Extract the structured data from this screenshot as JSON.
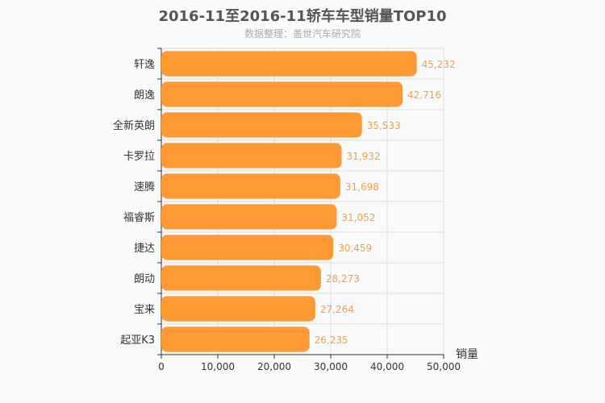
{
  "title": "2016-11至2016-11轿车车型销量TOP10",
  "subtitle": "数据整理：盖世汽车研究院",
  "chart_data": {
    "type": "bar",
    "orientation": "horizontal",
    "title": "2016-11至2016-11轿车车型销量TOP10",
    "subtitle": "数据整理：盖世汽车研究院",
    "categories": [
      "轩逸",
      "朗逸",
      "全新英朗",
      "卡罗拉",
      "速腾",
      "福睿斯",
      "捷达",
      "朗动",
      "宝来",
      "起亚K3"
    ],
    "values": [
      45232,
      42716,
      35533,
      31932,
      31698,
      31052,
      30459,
      28273,
      27264,
      26235
    ],
    "value_labels": [
      "45,232",
      "42,716",
      "35,533",
      "31,932",
      "31,698",
      "31,052",
      "30,459",
      "28,273",
      "27,264",
      "26,235"
    ],
    "xlabel": "销量",
    "ylabel": "",
    "xlim": [
      0,
      50000
    ],
    "x_ticks": [
      0,
      10000,
      20000,
      30000,
      40000,
      50000
    ],
    "x_tick_labels": [
      "0",
      "10,000",
      "20,000",
      "30,000",
      "40,000",
      "50,000"
    ],
    "grid": true,
    "legend": "none",
    "bar_color": "#ff9933",
    "value_label_color": "#f0a040"
  }
}
